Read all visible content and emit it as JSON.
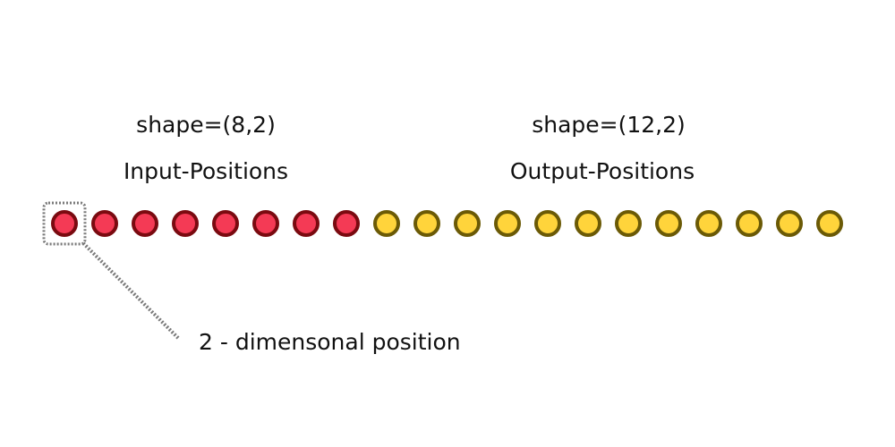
{
  "input": {
    "shape_label": "shape=(8,2)",
    "title": "Input-Positions",
    "count": 8,
    "fill": "#f43a55",
    "stroke": "#7a0a10"
  },
  "output": {
    "shape_label": "shape=(12,2)",
    "title": "Output-Positions",
    "count": 12,
    "fill": "#ffd43b",
    "stroke": "#6b5a06"
  },
  "callout": {
    "label": "2 - dimensonal position",
    "color": "#7a7a7a"
  }
}
